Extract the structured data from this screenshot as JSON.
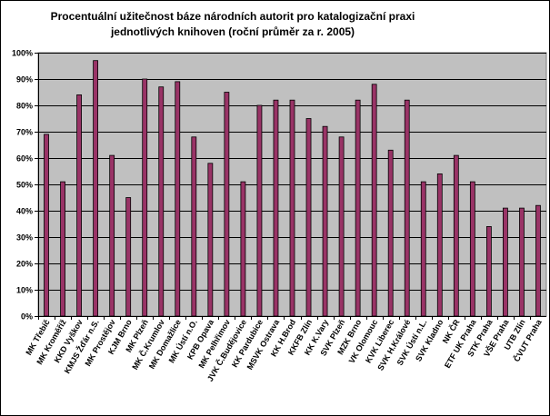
{
  "chart_data": {
    "type": "bar",
    "title_lines": [
      "Procentuální užitečnost báze národních autorit pro katalogizační praxi",
      "jednotlivých knihoven (roční průměr za r. 2005)"
    ],
    "xlabel": "",
    "ylabel": "",
    "ylim": [
      0,
      100
    ],
    "y_ticks": [
      "0%",
      "10%",
      "20%",
      "30%",
      "40%",
      "50%",
      "60%",
      "70%",
      "80%",
      "90%",
      "100%"
    ],
    "grid": true,
    "legend": "none",
    "colors": {
      "plot_background": "#c0c0c0",
      "bar_fill": "#993366",
      "bar_stroke": "#000000",
      "gridline": "#000000"
    },
    "categories": [
      "MK Třebíč",
      "MK Kroměříž",
      "KKD Vyškov",
      "KMJS Žďár n.S.",
      "MK Prostějov",
      "KJM Brno",
      "MK Plzeň",
      "MK Č.Krumlov",
      "MK Domažlice",
      "MK Ústí n.O.",
      "KPB Opava",
      "MK Pelhřimov",
      "JVK Č.Budějovice",
      "KK Pardubice",
      "MSVK Ostrava",
      "KK H.Brod",
      "KKFB Zlín",
      "KK K.Vary",
      "SVK Plzeň",
      "MZK Brno",
      "VK Olomouc",
      "KVK Liberec",
      "SVK H.Králové",
      "SVK Ústí n.L.",
      "SVK Kladno",
      "NK ČR",
      "ETF UK Praha",
      "STK Praha",
      "VŠE Praha",
      "UTB Zlín",
      "ČVUT Praha"
    ],
    "values": [
      69,
      51,
      84,
      97,
      61,
      45,
      90,
      87,
      89,
      68,
      58,
      85,
      51,
      80,
      82,
      82,
      75,
      72,
      68,
      82,
      88,
      63,
      82,
      51,
      54,
      61,
      51,
      34,
      41,
      41,
      42
    ]
  }
}
